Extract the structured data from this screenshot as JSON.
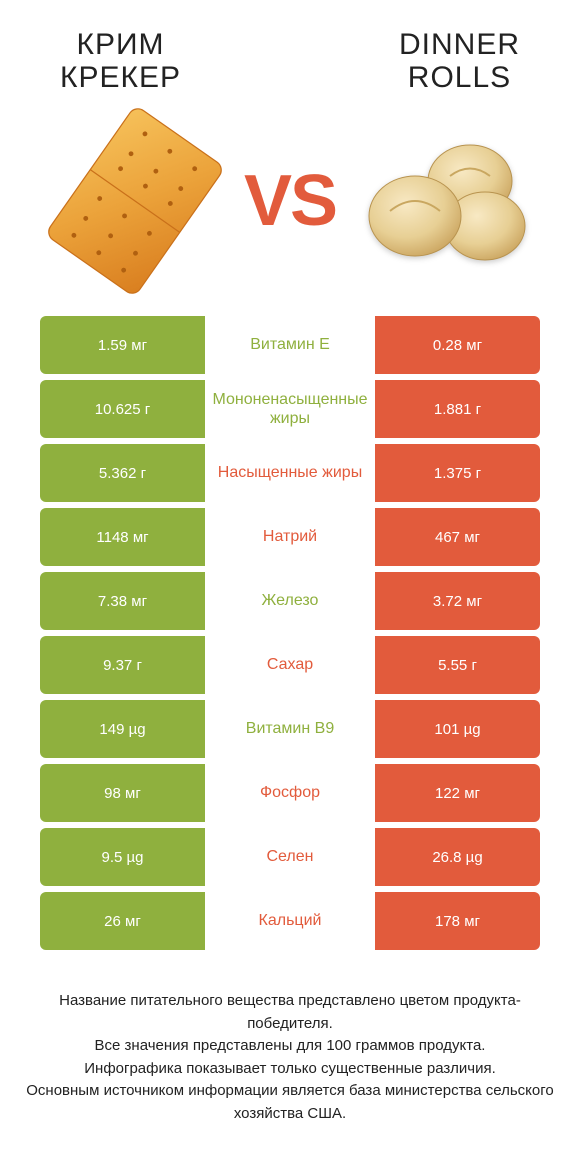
{
  "header": {
    "left_title": "КРИМ\nКРЕКЕР",
    "right_title": "DINNER\nROLLS"
  },
  "vs_label": "VS",
  "colors": {
    "left": "#8fb03e",
    "right": "#e25b3c",
    "bg": "#ffffff",
    "text": "#222222"
  },
  "rows": [
    {
      "name": "Витамин E",
      "left": "1.59 мг",
      "right": "0.28 мг",
      "winner": "left"
    },
    {
      "name": "Мононенасыщенные жиры",
      "left": "10.625 г",
      "right": "1.881 г",
      "winner": "left"
    },
    {
      "name": "Насыщенные жиры",
      "left": "5.362 г",
      "right": "1.375 г",
      "winner": "right"
    },
    {
      "name": "Натрий",
      "left": "1148 мг",
      "right": "467 мг",
      "winner": "right"
    },
    {
      "name": "Железо",
      "left": "7.38 мг",
      "right": "3.72 мг",
      "winner": "left"
    },
    {
      "name": "Сахар",
      "left": "9.37 г",
      "right": "5.55 г",
      "winner": "right"
    },
    {
      "name": "Витамин B9",
      "left": "149 µg",
      "right": "101 µg",
      "winner": "left"
    },
    {
      "name": "Фосфор",
      "left": "98 мг",
      "right": "122 мг",
      "winner": "right"
    },
    {
      "name": "Селен",
      "left": "9.5 µg",
      "right": "26.8 µg",
      "winner": "right"
    },
    {
      "name": "Кальций",
      "left": "26 мг",
      "right": "178 мг",
      "winner": "right"
    }
  ],
  "footer_lines": [
    "Название питательного вещества представлено цветом продукта-победителя.",
    "Все значения представлены для 100 граммов продукта.",
    "Инфографика показывает только существенные различия.",
    "Основным источником информации является база министерства сельского хозяйства США."
  ],
  "title_fontsize": 30,
  "vs_fontsize": 72,
  "row_fontsize": 15,
  "footer_fontsize": 15
}
